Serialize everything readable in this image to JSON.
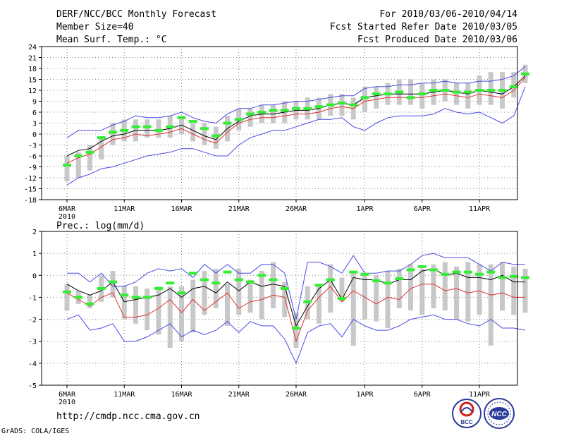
{
  "header": {
    "left_line1": "DERF/NCC/BCC Monthly Forecast",
    "left_line2": "Member Size=40",
    "right_line1": "For 2010/03/06-2010/04/14",
    "right_line2": "Fcst Started Refer Date 2010/03/05",
    "right_line3": "Fcst Produced Date 2010/03/06"
  },
  "footer": {
    "url": "http://cmdp.ncc.cma.gov.cn",
    "credit": "GrADS: COLA/IGES",
    "logo_bcc_text": "BCC",
    "logo_ncc_text": "NCC"
  },
  "colors": {
    "spread": "#4a4ae8",
    "ensemble_mean": "#000000",
    "climatology": "#e03030",
    "observed_mark": "#33ee33",
    "box": "#c8c8c8",
    "grid": "#888888"
  },
  "chart_data": [
    {
      "type": "line",
      "title": "Mean Surf. Temp.: °C",
      "x_tick_labels": [
        "6MAR",
        "11MAR",
        "16MAR",
        "21MAR",
        "26MAR",
        "1APR",
        "6APR",
        "11APR"
      ],
      "x_tick_days": [
        0,
        5,
        10,
        15,
        20,
        26,
        31,
        36
      ],
      "x_year_label": "2010",
      "ylim": [
        -18,
        24
      ],
      "y_ticks": [
        -18,
        -15,
        -12,
        -9,
        -6,
        -3,
        0,
        3,
        6,
        9,
        12,
        15,
        18,
        21,
        24
      ],
      "series": [
        {
          "name": "upper",
          "values": [
            -1,
            1,
            1,
            1,
            2.5,
            3.5,
            5,
            4.5,
            4.5,
            5,
            6,
            4.5,
            3.5,
            3,
            5.5,
            7,
            7,
            8,
            8,
            8.5,
            9,
            9,
            9.5,
            10,
            10.5,
            10.5,
            12.5,
            13,
            13,
            13.5,
            13.5,
            14,
            14,
            14.5,
            14,
            14,
            14.5,
            14.5,
            15,
            16,
            18.5
          ]
        },
        {
          "name": "ensemble",
          "values": [
            -6,
            -4.5,
            -4,
            -2,
            -0.5,
            0,
            1,
            1,
            1,
            1.5,
            2.5,
            1,
            -0.5,
            -1.5,
            1.5,
            3.5,
            5,
            5.5,
            5.5,
            6,
            6.5,
            6.5,
            7,
            8,
            8.5,
            8,
            10,
            10.5,
            11,
            11,
            11,
            11,
            11.5,
            12,
            11.5,
            11,
            12,
            11.5,
            11,
            13,
            16
          ]
        },
        {
          "name": "climatology",
          "values": [
            -8,
            -6.5,
            -5.5,
            -3.5,
            -1.5,
            -1,
            0,
            -0.5,
            0,
            0.5,
            1.5,
            0,
            -1.5,
            -2.5,
            0.5,
            3,
            4,
            4.5,
            4.5,
            5,
            5.5,
            5.5,
            6,
            7,
            7.5,
            7,
            9,
            9.5,
            10,
            10,
            10,
            10,
            10.5,
            11,
            10.5,
            10,
            11,
            10.5,
            10,
            12,
            15.5
          ]
        },
        {
          "name": "lower",
          "values": [
            -14,
            -12,
            -11,
            -9.5,
            -9,
            -8,
            -7,
            -6,
            -5.5,
            -5,
            -4,
            -4,
            -5,
            -6,
            -6,
            -3,
            -1,
            0,
            1,
            1,
            2,
            3,
            4,
            4,
            4.5,
            2,
            1,
            3,
            4.5,
            5,
            5,
            5,
            5.5,
            7,
            6,
            5.5,
            6,
            4.5,
            3,
            5,
            13
          ]
        }
      ],
      "boxes": [
        {
          "low": -13,
          "high": -6
        },
        {
          "low": -12,
          "high": -5
        },
        {
          "low": -10,
          "high": -3
        },
        {
          "low": -7,
          "high": -1
        },
        {
          "low": -3,
          "high": 3
        },
        {
          "low": -2,
          "high": 4
        },
        {
          "low": -2,
          "high": 4
        },
        {
          "low": -1,
          "high": 4
        },
        {
          "low": -1,
          "high": 4
        },
        {
          "low": -1,
          "high": 5
        },
        {
          "low": 0,
          "high": 5
        },
        {
          "low": -2,
          "high": 3
        },
        {
          "low": -3,
          "high": 3
        },
        {
          "low": -4,
          "high": 2
        },
        {
          "low": -2,
          "high": 5
        },
        {
          "low": 1,
          "high": 7
        },
        {
          "low": 2,
          "high": 7
        },
        {
          "low": 3,
          "high": 8
        },
        {
          "low": 3,
          "high": 8
        },
        {
          "low": 3,
          "high": 9
        },
        {
          "low": 4,
          "high": 9
        },
        {
          "low": 4,
          "high": 10
        },
        {
          "low": 4,
          "high": 10
        },
        {
          "low": 5,
          "high": 11
        },
        {
          "low": 5,
          "high": 11
        },
        {
          "low": 4,
          "high": 10
        },
        {
          "low": 6,
          "high": 13
        },
        {
          "low": 7,
          "high": 13
        },
        {
          "low": 8,
          "high": 14
        },
        {
          "low": 8,
          "high": 15
        },
        {
          "low": 8,
          "high": 15
        },
        {
          "low": 7,
          "high": 14
        },
        {
          "low": 8,
          "high": 15
        },
        {
          "low": 9,
          "high": 15
        },
        {
          "low": 8,
          "high": 14
        },
        {
          "low": 7,
          "high": 14
        },
        {
          "low": 8,
          "high": 16
        },
        {
          "low": 8,
          "high": 17
        },
        {
          "low": 7,
          "high": 17
        },
        {
          "low": 10,
          "high": 17
        },
        {
          "low": 14,
          "high": 19
        }
      ],
      "observed": [
        -8.5,
        -6,
        -5,
        -1,
        0.5,
        1,
        2,
        2,
        1,
        2,
        4.5,
        3.5,
        1.5,
        -0.5,
        3,
        4,
        5.5,
        6,
        6.5,
        6.5,
        7,
        7,
        7.5,
        8,
        8.5,
        8,
        10,
        11,
        11,
        11.5,
        10,
        11,
        12,
        12,
        11.5,
        11.5,
        12,
        12,
        12,
        13,
        16.5
      ]
    },
    {
      "type": "line",
      "title": "Prec.: log(mm/d)",
      "x_tick_labels": [
        "6MAR",
        "11MAR",
        "16MAR",
        "21MAR",
        "26MAR",
        "1APR",
        "6APR",
        "11APR"
      ],
      "x_tick_days": [
        0,
        5,
        10,
        15,
        20,
        26,
        31,
        36
      ],
      "x_year_label": "2010",
      "ylim": [
        -5,
        2
      ],
      "y_ticks": [
        -5,
        -4,
        -3,
        -2,
        -1,
        0,
        1,
        2
      ],
      "series": [
        {
          "name": "upper",
          "values": [
            0.1,
            0.1,
            -0.3,
            0.1,
            -0.5,
            -0.5,
            -0.3,
            0.1,
            0.3,
            0.2,
            0.3,
            -0.1,
            0.5,
            0.1,
            0.5,
            0.1,
            0.1,
            0.5,
            0.5,
            0.1,
            -2.0,
            0.6,
            0.6,
            0.4,
            0.1,
            0.9,
            0.1,
            0.1,
            0.2,
            0.2,
            0.5,
            0.9,
            1.0,
            0.8,
            0.8,
            0.8,
            0.5,
            0.2,
            0.6,
            0.5,
            0.5
          ]
        },
        {
          "name": "ensemble",
          "values": [
            -0.4,
            -0.7,
            -0.9,
            -0.7,
            -0.3,
            -1.2,
            -1.1,
            -1.0,
            -0.9,
            -0.6,
            -1.0,
            -0.6,
            -0.5,
            -0.8,
            -0.3,
            -0.7,
            -0.3,
            -0.5,
            -0.4,
            -0.5,
            -2.3,
            -1.4,
            -0.6,
            -0.2,
            -1.1,
            -0.1,
            -0.2,
            -0.2,
            -0.4,
            -0.2,
            -0.2,
            0.2,
            0.3,
            0.0,
            0.1,
            -0.1,
            -0.1,
            -0.2,
            0.0,
            -0.3,
            -0.3
          ]
        },
        {
          "name": "climatology",
          "values": [
            -0.8,
            -1.1,
            -1.4,
            -1.0,
            -0.8,
            -1.9,
            -1.9,
            -1.8,
            -1.5,
            -1.1,
            -1.7,
            -1.1,
            -1.6,
            -1.2,
            -0.8,
            -1.5,
            -1.2,
            -1.1,
            -0.9,
            -1.0,
            -3.0,
            -1.6,
            -1.0,
            -0.5,
            -1.2,
            -0.7,
            -1.0,
            -1.3,
            -1.0,
            -1.1,
            -0.6,
            -0.4,
            -0.4,
            -0.7,
            -0.6,
            -0.8,
            -0.7,
            -0.9,
            -0.8,
            -1.0,
            -1.0
          ]
        },
        {
          "name": "lower",
          "values": [
            -2.0,
            -1.8,
            -2.5,
            -2.4,
            -2.2,
            -3.0,
            -3.0,
            -2.8,
            -2.5,
            -2.2,
            -2.8,
            -2.5,
            -2.7,
            -2.5,
            -2.1,
            -2.6,
            -2.1,
            -2.3,
            -2.3,
            -2.9,
            -4.0,
            -2.6,
            -2.3,
            -2.2,
            -2.8,
            -2.0,
            -2.3,
            -2.5,
            -2.5,
            -2.3,
            -2.0,
            -1.9,
            -1.8,
            -2.0,
            -2.0,
            -2.2,
            -2.3,
            -2.0,
            -2.4,
            -2.4,
            -2.5
          ]
        }
      ],
      "boxes": [
        {
          "low": -1.6,
          "high": -0.4
        },
        {
          "low": -1.3,
          "high": -0.7
        },
        {
          "low": -1.5,
          "high": -0.9
        },
        {
          "low": -1.2,
          "high": 0.0
        },
        {
          "low": -1.0,
          "high": 0.2
        },
        {
          "low": -2.0,
          "high": -0.5
        },
        {
          "low": -2.2,
          "high": -0.5
        },
        {
          "low": -2.5,
          "high": -0.6
        },
        {
          "low": -2.7,
          "high": -0.5
        },
        {
          "low": -3.3,
          "high": -0.5
        },
        {
          "low": -3.0,
          "high": -0.5
        },
        {
          "low": -2.6,
          "high": -0.2
        },
        {
          "low": -1.8,
          "high": 0.2
        },
        {
          "low": -1.5,
          "high": 0.3
        },
        {
          "low": -2.3,
          "high": -0.4
        },
        {
          "low": -1.8,
          "high": 0.3
        },
        {
          "low": -1.7,
          "high": -0.2
        },
        {
          "low": -2.0,
          "high": 0.2
        },
        {
          "low": -1.5,
          "high": 0.6
        },
        {
          "low": -1.9,
          "high": -0.3
        },
        {
          "low": -3.3,
          "high": -1.7
        },
        {
          "low": -2.0,
          "high": -0.5
        },
        {
          "low": -2.2,
          "high": -0.4
        },
        {
          "low": -1.7,
          "high": 0.5
        },
        {
          "low": -1.2,
          "high": -0.1
        },
        {
          "low": -3.2,
          "high": 0.1
        },
        {
          "low": -2.0,
          "high": 0.0
        },
        {
          "low": -2.1,
          "high": 0.0
        },
        {
          "low": -2.4,
          "high": 0.2
        },
        {
          "low": -1.5,
          "high": 0.3
        },
        {
          "low": -1.6,
          "high": 0.5
        },
        {
          "low": -1.8,
          "high": 0.3
        },
        {
          "low": -1.5,
          "high": 0.5
        },
        {
          "low": -1.6,
          "high": 0.6
        },
        {
          "low": -2.0,
          "high": 0.4
        },
        {
          "low": -2.1,
          "high": 0.6
        },
        {
          "low": -1.8,
          "high": 0.5
        },
        {
          "low": -3.2,
          "high": 0.5
        },
        {
          "low": -1.6,
          "high": 0.6
        },
        {
          "low": -1.8,
          "high": 0.4
        },
        {
          "low": -1.7,
          "high": 0.3
        }
      ],
      "observed": [
        -0.75,
        -1.0,
        -1.3,
        -0.6,
        -0.3,
        -0.9,
        -1.0,
        -1.0,
        -0.6,
        -0.35,
        -0.8,
        0.1,
        -0.2,
        -0.35,
        0.15,
        -0.2,
        -0.3,
        0.0,
        -0.2,
        -0.6,
        -2.4,
        -1.2,
        -0.45,
        -0.2,
        -1.05,
        0.15,
        0.05,
        -0.25,
        -0.35,
        -0.15,
        0.25,
        0.4,
        0.25,
        0.05,
        0.15,
        0.15,
        0.05,
        0.15,
        -0.1,
        -0.05,
        -0.1
      ]
    }
  ]
}
